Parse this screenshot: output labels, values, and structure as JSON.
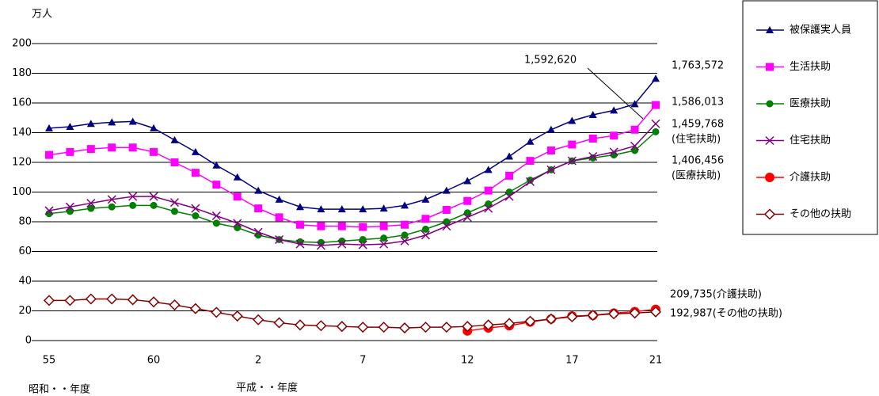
{
  "chart_data": {
    "type": "line",
    "y_unit": "万人",
    "x_era_labels": [
      "昭和・・年度",
      "平成・・年度"
    ],
    "categories": [
      "55",
      null,
      null,
      null,
      null,
      "60",
      null,
      null,
      null,
      null,
      "2",
      null,
      null,
      null,
      null,
      "7",
      null,
      null,
      null,
      null,
      "12",
      null,
      null,
      null,
      null,
      "17",
      null,
      null,
      null,
      "21"
    ],
    "ylim": [
      0,
      200
    ],
    "yticks": [
      0,
      20,
      40,
      60,
      80,
      100,
      120,
      140,
      160,
      180,
      200
    ],
    "grid": true,
    "series": [
      {
        "name": "被保護実人員",
        "color": "#000080",
        "marker": "triangle",
        "values": [
          143,
          144,
          146,
          147,
          147.5,
          143,
          135,
          127,
          118,
          110,
          101,
          95,
          90,
          88.5,
          88.5,
          88.5,
          89,
          91,
          95,
          101,
          107.5,
          115,
          124,
          134,
          142,
          148,
          152,
          155,
          159.3,
          176.4
        ]
      },
      {
        "name": "生活扶助",
        "color": "#ff00ff",
        "marker": "square",
        "values": [
          125,
          127,
          129,
          130,
          130,
          127,
          120,
          113,
          105,
          97,
          89,
          83,
          78,
          77,
          77,
          76.5,
          77,
          78,
          82,
          88,
          94,
          101,
          111,
          121,
          128,
          132,
          136,
          138,
          142,
          158.6
        ]
      },
      {
        "name": "医療扶助",
        "color": "#008000",
        "marker": "circle",
        "values": [
          85.5,
          87,
          89,
          90,
          91,
          91,
          87,
          84,
          79,
          76,
          71,
          68,
          66.5,
          66,
          67,
          68,
          69,
          71,
          75,
          80,
          86,
          92,
          100,
          108,
          115,
          121,
          123,
          125,
          128,
          140.6
        ]
      },
      {
        "name": "住宅扶助",
        "color": "#800080",
        "marker": "cross",
        "values": [
          87.5,
          90,
          92.5,
          95,
          97,
          97,
          93,
          89,
          84,
          79,
          73,
          68,
          65,
          64,
          65,
          64.5,
          65,
          67,
          71,
          77,
          83,
          89,
          97,
          107,
          115,
          121,
          124,
          127,
          131,
          146
        ]
      },
      {
        "name": "介護扶助",
        "color": "#ff0000",
        "marker": "bigcircle",
        "values": [
          null,
          null,
          null,
          null,
          null,
          null,
          null,
          null,
          null,
          null,
          null,
          null,
          null,
          null,
          null,
          null,
          null,
          null,
          null,
          null,
          6.5,
          8.5,
          10,
          12.5,
          14.5,
          16.5,
          17,
          18.5,
          19.5,
          21
        ]
      },
      {
        "name": "その他の扶助",
        "color": "#800000",
        "marker": "diamond",
        "values": [
          27,
          27,
          28,
          28,
          27.5,
          26,
          24,
          21.5,
          19,
          16.5,
          14,
          12,
          10.5,
          10,
          9.5,
          9,
          9,
          8.5,
          9,
          9,
          9.5,
          10.5,
          11.5,
          13,
          14.5,
          16,
          17,
          18,
          18.5,
          19.3
        ]
      }
    ],
    "annotations": [
      "1,592,620",
      "1,763,572",
      "1,586,013",
      "1,459,768",
      "(住宅扶助)",
      "1,406,456",
      "(医療扶助)",
      "209,735(介護扶助)",
      "192,987(その他の扶助)"
    ]
  }
}
